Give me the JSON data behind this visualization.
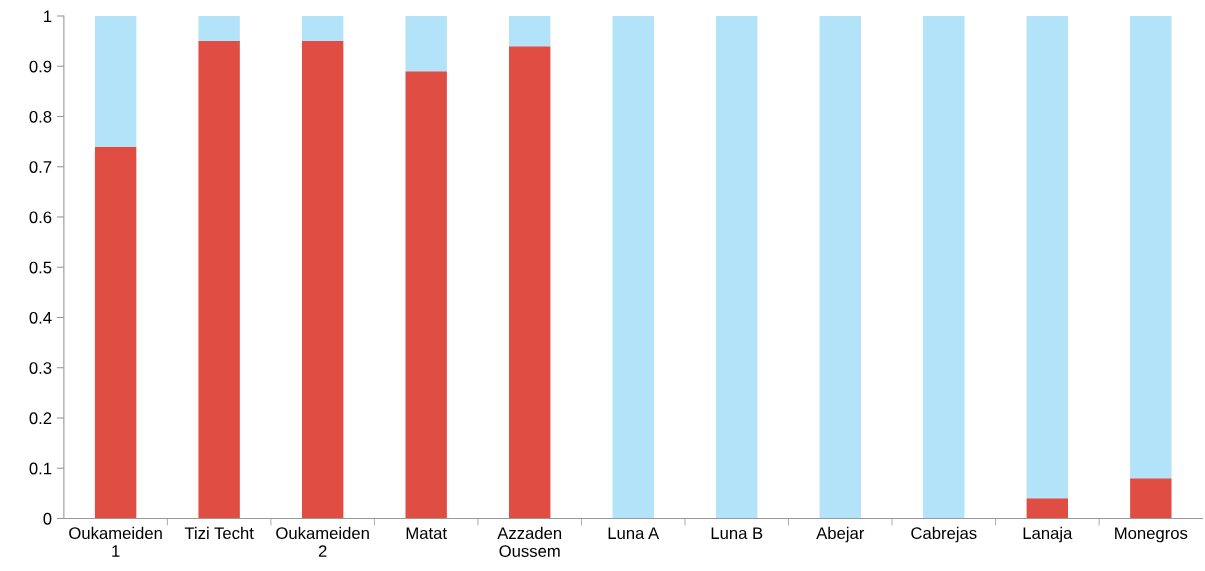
{
  "chart_data": {
    "type": "bar",
    "stacked": true,
    "categories": [
      "Oukameiden\n1",
      "Tizi Techt",
      "Oukameiden\n2",
      "Matat",
      "Azzaden\nOussem",
      "Luna A",
      "Luna B",
      "Abejar",
      "Cabrejas",
      "Lanaja",
      "Monegros"
    ],
    "series": [
      {
        "color": "#e04e43",
        "values": [
          0.74,
          0.95,
          0.95,
          0.89,
          0.94,
          0,
          0,
          0,
          0,
          0.04,
          0.08
        ]
      },
      {
        "color": "#b2e3f8",
        "values": [
          0.26,
          0.05,
          0.05,
          0.11,
          0.06,
          1,
          1,
          1,
          1,
          0.96,
          0.92
        ]
      }
    ],
    "ylim": [
      0,
      1
    ],
    "yticks": [
      0,
      0.1,
      0.2,
      0.3,
      0.4,
      0.5,
      0.6,
      0.7,
      0.8,
      0.9,
      1
    ],
    "grid": false
  }
}
